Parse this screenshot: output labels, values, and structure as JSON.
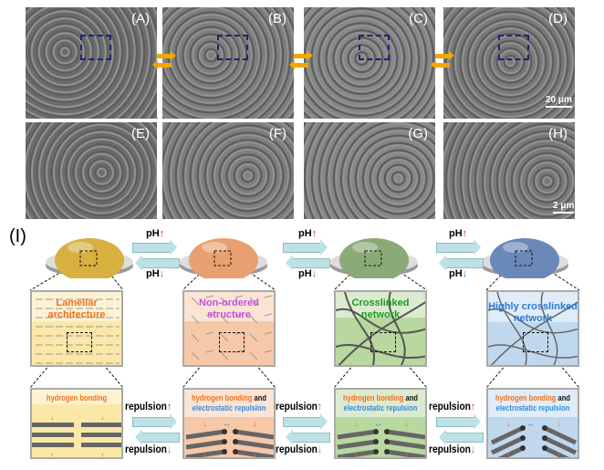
{
  "sem_panels": [
    {
      "label": "(A)"
    },
    {
      "label": "(B)"
    },
    {
      "label": "(C)"
    },
    {
      "label": "(D)"
    },
    {
      "label": "(E)"
    },
    {
      "label": "(F)"
    },
    {
      "label": "(G)"
    },
    {
      "label": "(H)"
    }
  ],
  "scale_bars": {
    "top": "20 μm",
    "bottom": "2 μm"
  },
  "schematic": {
    "panel_label": "(I)",
    "ph_up": "pH",
    "ph_down": "pH",
    "up_arrow": "↑",
    "down_arrow": "↓",
    "repulsion_up": "repulsion",
    "repulsion_down": "repulsion",
    "stages": [
      {
        "title": "Lamellar architecture",
        "title_color": "#f07020",
        "dome_color": "#d8b040",
        "bg": "#fbe8a8",
        "bg_light": "#fdf3d4",
        "mech": [
          {
            "text": "hydrogen bonding",
            "color": "#f07020"
          }
        ]
      },
      {
        "title": "Non-ordered structure",
        "title_color": "#c050e0",
        "dome_color": "#e8a070",
        "bg": "#f6c8a8",
        "bg_light": "#fbe4d4",
        "mech": [
          {
            "text": "hydrogen bonding",
            "color": "#f07020"
          },
          {
            "text": " and",
            "color": "#111"
          },
          {
            "text": "electrostatic repulsion",
            "color": "#3a8ad8",
            "br": true
          }
        ]
      },
      {
        "title": "Crosslinked network",
        "title_color": "#1a9a20",
        "dome_color": "#8aaa78",
        "bg": "#b8d8a0",
        "bg_light": "#dcebd0",
        "mech": [
          {
            "text": "hydrogen bonding",
            "color": "#f07020"
          },
          {
            "text": " and",
            "color": "#111"
          },
          {
            "text": "electrostatic repulsion",
            "color": "#3a8ad8",
            "br": true
          }
        ]
      },
      {
        "title": "Highly crosslinked network",
        "title_color": "#2a7ad0",
        "dome_color": "#6a88b8",
        "bg": "#c0d8ee",
        "bg_light": "#e0ecf7",
        "mech": [
          {
            "text": "hydrogen bonding",
            "color": "#f07020"
          },
          {
            "text": " and",
            "color": "#111"
          },
          {
            "text": "electrostatic repulsion",
            "color": "#3a8ad8",
            "br": true
          }
        ]
      }
    ]
  }
}
